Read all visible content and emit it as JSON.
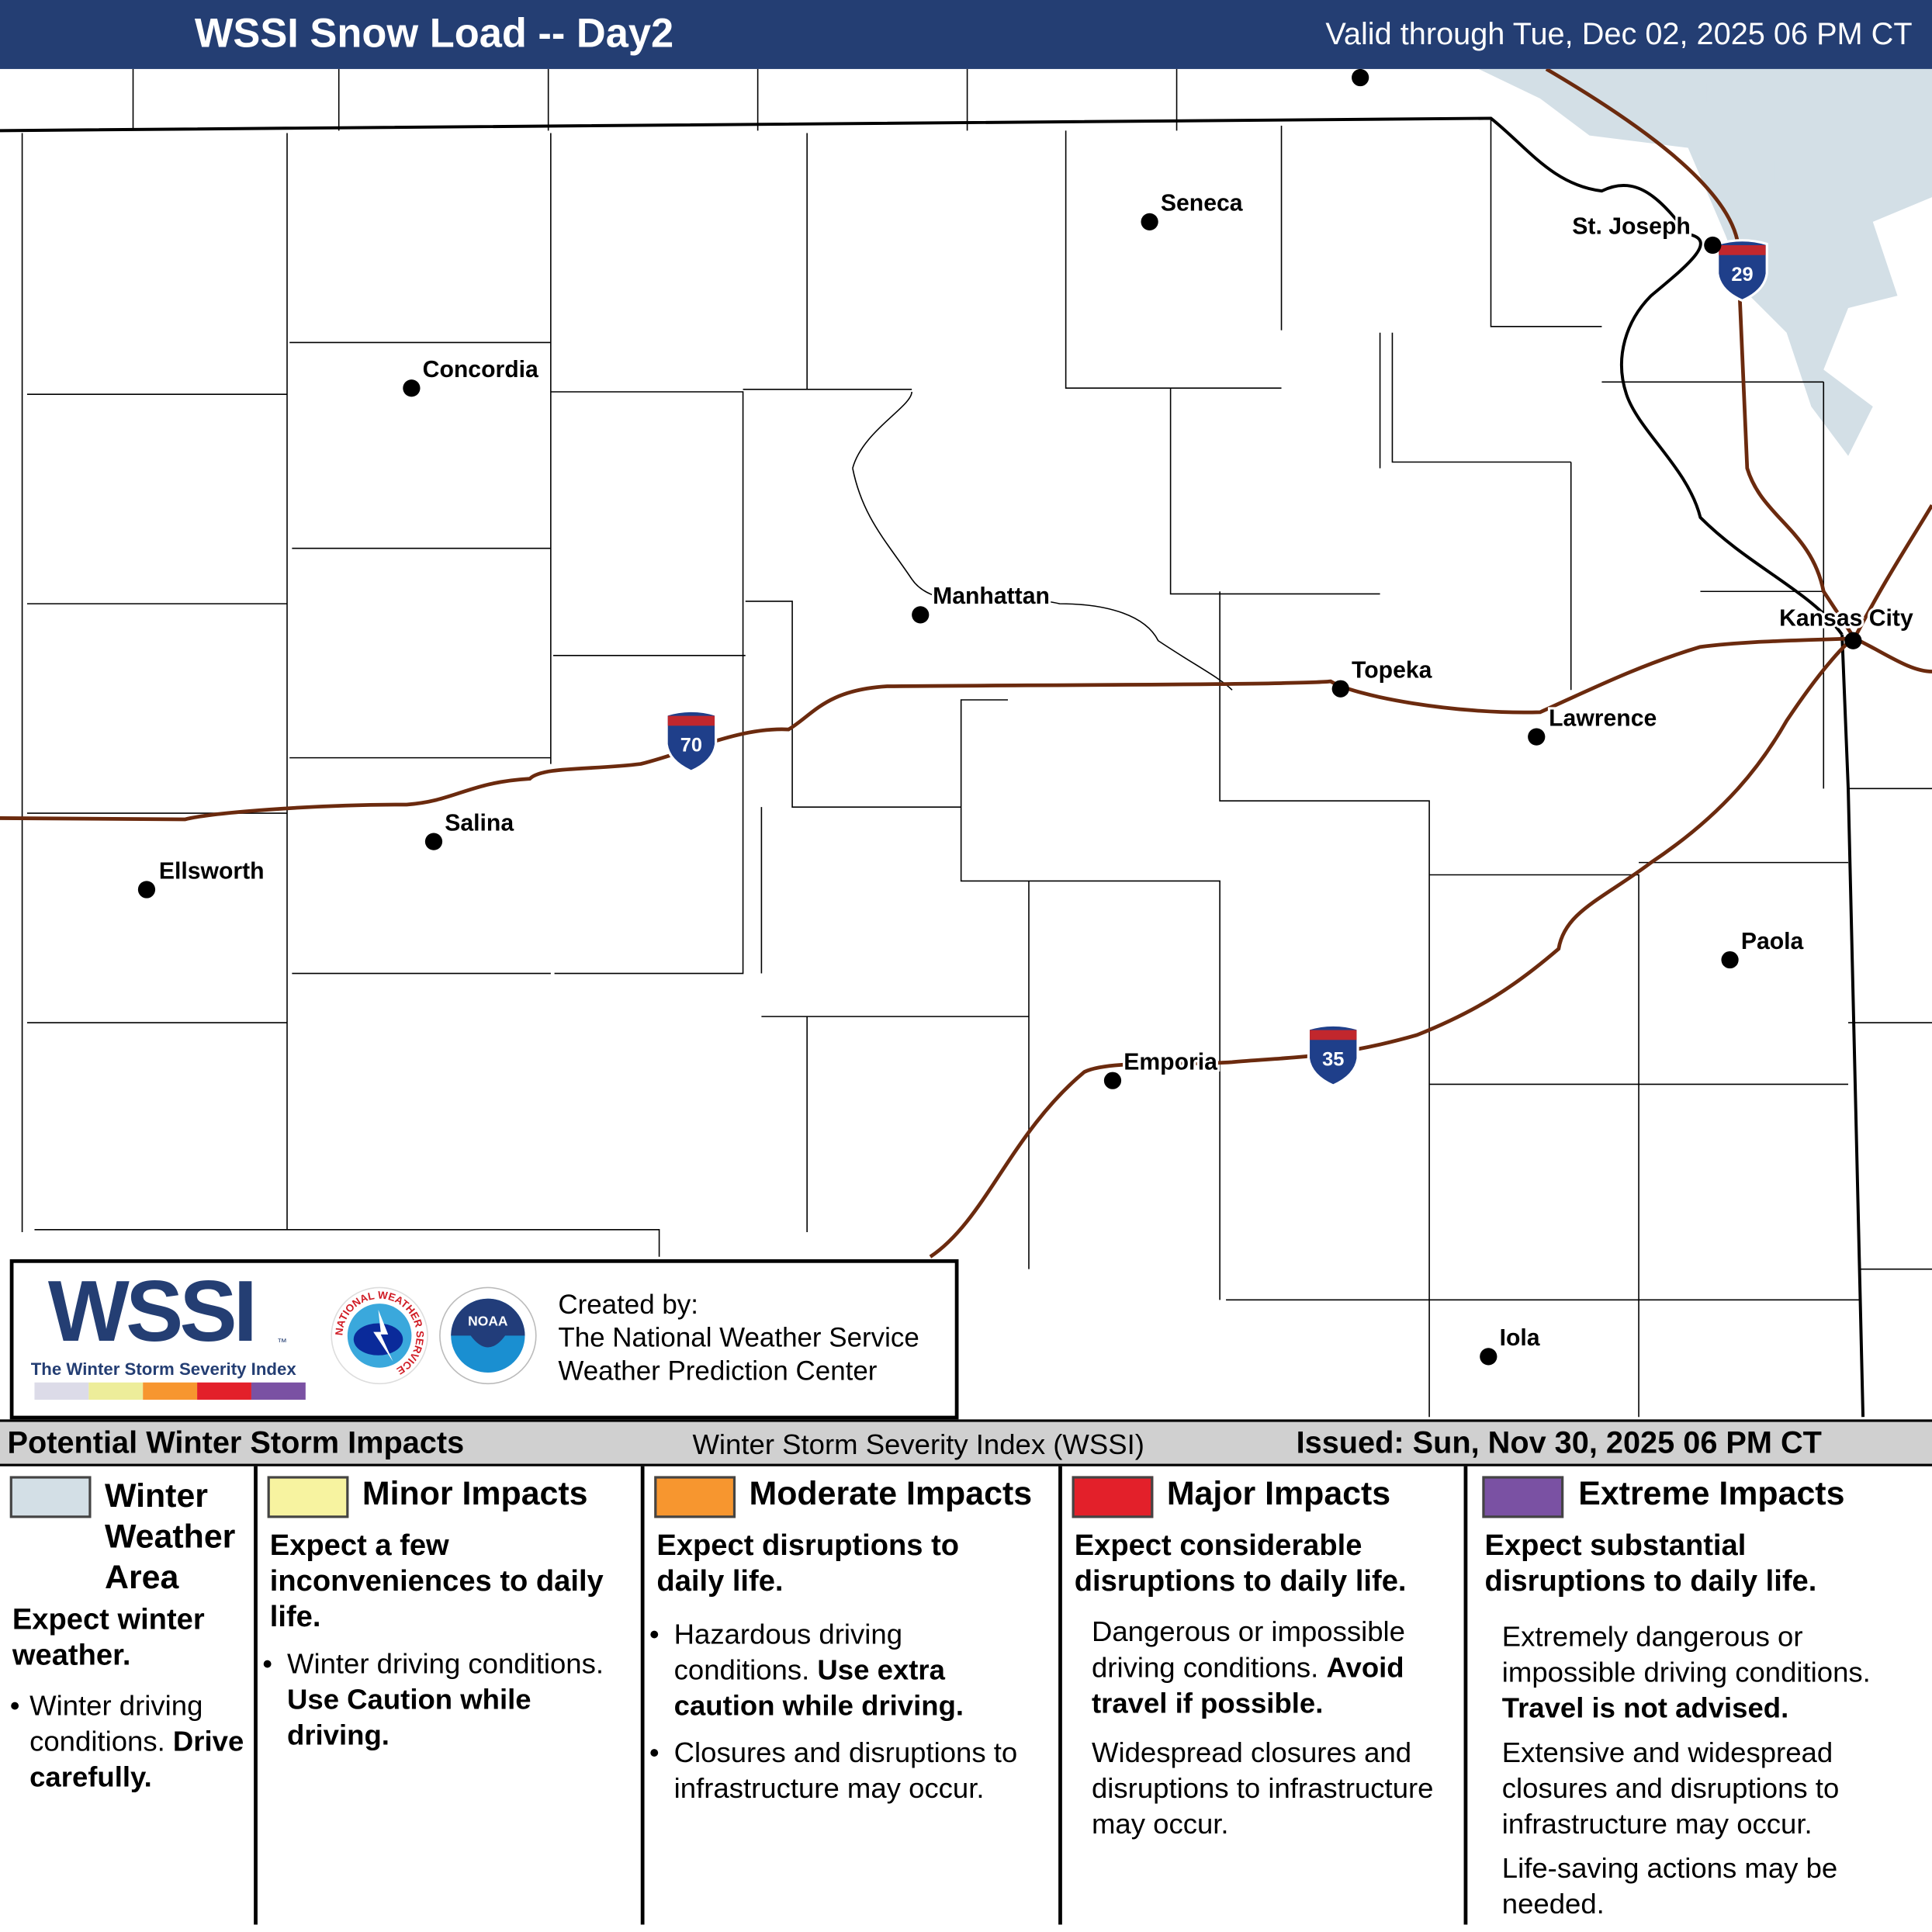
{
  "header": {
    "title": "WSSI Snow Load -- Day2",
    "valid": "Valid through Tue, Dec 02, 2025 06 PM CT"
  },
  "colors": {
    "header": "#243e73",
    "highway": "#6b2a0e",
    "winter_weather": "#d3dfe6",
    "minor": "#f7f3a0",
    "moderate": "#f7962f",
    "major": "#e3202a",
    "extreme": "#7a51a3",
    "shield_blue": "#1f3f8a",
    "shield_red": "#c1272d"
  },
  "cities": [
    "Seneca",
    "St. Joseph",
    "Concordia",
    "Manhattan",
    "Kansas City",
    "Topeka",
    "Lawrence",
    "Salina",
    "Ellsworth",
    "Paola",
    "Emporia",
    "Iola"
  ],
  "highways": [
    "70",
    "35",
    "29"
  ],
  "logo": {
    "wssi": "WSSI",
    "tm": "™",
    "subtitle": "The Winter Storm Severity Index",
    "nws_text": "NATIONAL WEATHER SERVICE",
    "noaa_text": "NOAA",
    "created": [
      "Created by:",
      "The National Weather Service",
      "Weather Prediction Center"
    ]
  },
  "legend_bar": {
    "left": "Potential Winter Storm Impacts",
    "center": "Winter Storm Severity Index (WSSI)",
    "right": "Issued: Sun, Nov 30, 2025 06 PM CT"
  },
  "legend": [
    {
      "title": "Winter Weather Area",
      "summary": "Expect winter weather.",
      "bullets": [
        "Winter driving conditions."
      ],
      "bold": "Drive carefully."
    },
    {
      "title": "Minor Impacts",
      "summary": "Expect a few inconveniences to daily life.",
      "bullets": [
        "Winter driving conditions."
      ],
      "bold": "Use Caution while driving."
    },
    {
      "title": "Moderate Impacts",
      "summary": "Expect disruptions to daily life.",
      "bullets": [
        "Hazardous driving conditions.",
        "Closures and disruptions to infrastructure may occur."
      ],
      "bold": "Use extra caution while driving."
    },
    {
      "title": "Major Impacts",
      "summary": "Expect considerable disruptions to daily life.",
      "bullets": [
        "Dangerous or impossible driving conditions.",
        "Widespread closures and disruptions to infrastructure may occur."
      ],
      "bold": "Avoid travel if possible."
    },
    {
      "title": "Extreme Impacts",
      "summary": "Expect substantial disruptions to daily life.",
      "bullets": [
        "Extremely dangerous or impossible driving conditions.",
        "Extensive and widespread closures and disruptions to infrastructure may occur.",
        "Life-saving actions may be needed."
      ],
      "bold": "Travel is not advised."
    }
  ]
}
